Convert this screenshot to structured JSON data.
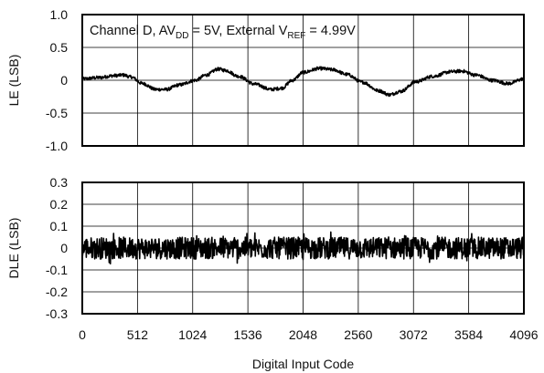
{
  "chart_data": [
    {
      "type": "line",
      "ylabel": "LE (LSB)",
      "annotation": {
        "channel": "Channel D, AV",
        "avdd_sub": "DD",
        "avdd_value": " = 5V, External V",
        "vref_sub": "REF",
        "vref_value": " = 4.99V"
      },
      "xlim": [
        0,
        4096
      ],
      "ylim": [
        -1.0,
        1.0
      ],
      "x_ticks": [
        0,
        512,
        1024,
        1536,
        2048,
        2560,
        3072,
        3584,
        4096
      ],
      "y_ticks": [
        1.0,
        0.5,
        0,
        -0.5,
        -1.0
      ],
      "y_tick_labels": [
        "1.0",
        "0.5",
        "0",
        "-0.5",
        "-1.0"
      ],
      "grid": true,
      "series": [
        {
          "x": [
            0,
            150,
            300,
            380,
            450,
            560,
            680,
            780,
            900,
            1050,
            1150,
            1260,
            1330,
            1450,
            1600,
            1750,
            1850,
            1950,
            2050,
            2200,
            2330,
            2450,
            2600,
            2750,
            2850,
            2950,
            3100,
            3250,
            3420,
            3520,
            3650,
            3800,
            3950,
            4096
          ],
          "y": [
            0.02,
            0.04,
            0.07,
            0.08,
            0.05,
            -0.05,
            -0.14,
            -0.14,
            -0.07,
            0.0,
            0.08,
            0.17,
            0.15,
            0.06,
            -0.06,
            -0.14,
            -0.12,
            0.0,
            0.12,
            0.18,
            0.16,
            0.09,
            -0.03,
            -0.16,
            -0.22,
            -0.17,
            -0.02,
            0.06,
            0.13,
            0.14,
            0.08,
            0.0,
            -0.05,
            0.02
          ],
          "noise_amplitude": 0.025
        }
      ]
    },
    {
      "type": "line",
      "ylabel": "DLE (LSB)",
      "xlabel": "Digital Input Code",
      "xlim": [
        0,
        4096
      ],
      "ylim": [
        -0.3,
        0.3
      ],
      "x_ticks": [
        0,
        512,
        1024,
        1536,
        2048,
        2560,
        3072,
        3584,
        4096
      ],
      "x_tick_labels": [
        "0",
        "512",
        "1024",
        "1536",
        "2048",
        "2560",
        "3072",
        "3584",
        "4096"
      ],
      "y_ticks": [
        0.3,
        0.2,
        0.1,
        0,
        -0.1,
        -0.2,
        -0.3
      ],
      "y_tick_labels": [
        "0.3",
        "0.2",
        "0.1",
        "0",
        "-0.1",
        "-0.2",
        "-0.3"
      ],
      "grid": true,
      "series": [
        {
          "x": [
            0,
            4096
          ],
          "y": [
            0,
            0
          ],
          "noise_amplitude": 0.05
        }
      ]
    }
  ]
}
